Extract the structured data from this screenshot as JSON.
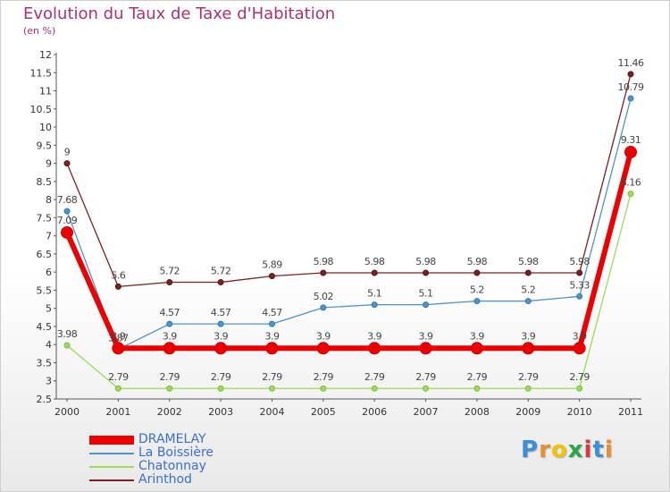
{
  "chart_data": {
    "type": "line",
    "title": "Evolution du Taux de Taxe d'Habitation",
    "subtitle": "(en %)",
    "x": [
      "2000",
      "2001",
      "2002",
      "2003",
      "2004",
      "2005",
      "2006",
      "2007",
      "2008",
      "2009",
      "2010",
      "2011"
    ],
    "ylim": [
      2.5,
      12
    ],
    "yticks": [
      "2.5",
      "3",
      "3.5",
      "4",
      "4.5",
      "5",
      "5.5",
      "6",
      "6.5",
      "7",
      "7.5",
      "8",
      "8.5",
      "9",
      "9.5",
      "10",
      "10.5",
      "11",
      "11.5",
      "12"
    ],
    "grid": false,
    "legend_position": "bottom-left",
    "series": [
      {
        "name": "DRAMELAY",
        "color": "#ee0000",
        "values": [
          7.09,
          3.9,
          3.9,
          3.9,
          3.9,
          3.9,
          3.9,
          3.9,
          3.9,
          3.9,
          3.9,
          9.31
        ],
        "labels": [
          "7.09",
          "3.9",
          "3.9",
          "3.9",
          "3.9",
          "3.9",
          "3.9",
          "3.9",
          "3.9",
          "3.9",
          "3.9",
          "9.31"
        ]
      },
      {
        "name": "La Boissière",
        "color": "#4f93c9",
        "values": [
          7.68,
          3.87,
          4.57,
          4.57,
          4.57,
          5.02,
          5.1,
          5.1,
          5.2,
          5.2,
          5.33,
          10.79
        ],
        "labels": [
          "7.68",
          "3.87",
          "4.57",
          "4.57",
          "4.57",
          "5.02",
          "5.1",
          "5.1",
          "5.2",
          "5.2",
          "5.33",
          "10.79"
        ]
      },
      {
        "name": "Chatonnay",
        "color": "#99dd55",
        "values": [
          3.98,
          2.79,
          2.79,
          2.79,
          2.79,
          2.79,
          2.79,
          2.79,
          2.79,
          2.79,
          2.79,
          8.16
        ],
        "labels": [
          "3.98",
          "2.79",
          "2.79",
          "2.79",
          "2.79",
          "2.79",
          "2.79",
          "2.79",
          "2.79",
          "2.79",
          "2.79",
          "8.16"
        ]
      },
      {
        "name": "Arinthod",
        "color": "#7a2020",
        "values": [
          9,
          5.6,
          5.72,
          5.72,
          5.89,
          5.98,
          5.98,
          5.98,
          5.98,
          5.98,
          5.98,
          11.46
        ],
        "labels": [
          "9",
          "5.6",
          "5.72",
          "5.72",
          "5.89",
          "5.98",
          "5.98",
          "5.98",
          "5.98",
          "5.98",
          "5.98",
          "11.46"
        ]
      }
    ]
  },
  "logo": {
    "letters": [
      {
        "ch": "P",
        "color": "#3a8fd8"
      },
      {
        "ch": "r",
        "color": "#e9902a"
      },
      {
        "ch": "o",
        "color": "#f2c200"
      },
      {
        "ch": "x",
        "color": "#2aa84a"
      },
      {
        "ch": "i",
        "color": "#d83a3a"
      },
      {
        "ch": "t",
        "color": "#3a8fd8"
      },
      {
        "ch": "i",
        "color": "#e9902a"
      }
    ]
  }
}
